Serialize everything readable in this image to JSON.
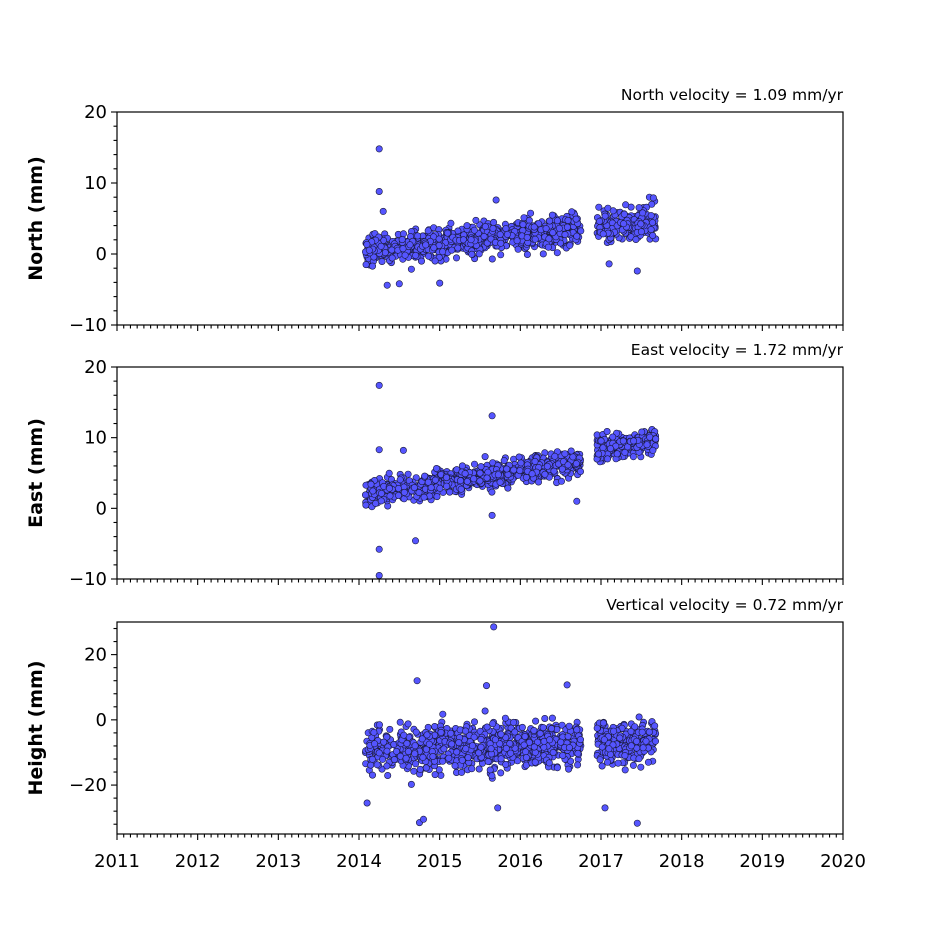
{
  "colors": {
    "marker_fill": "#5555ff",
    "marker_edge": "#1a1a3a",
    "axis": "#000000"
  },
  "x_tick_labels": [
    "2011",
    "2012",
    "2013",
    "2014",
    "2015",
    "2016",
    "2017",
    "2018",
    "2019",
    "2020"
  ],
  "chart_data": [
    {
      "type": "scatter",
      "title": "North velocity = 1.09 mm/yr",
      "ylabel": "North (mm)",
      "xlim": [
        2011,
        2020
      ],
      "ylim": [
        -10,
        20
      ],
      "yticks": [
        -10,
        0,
        10,
        20
      ],
      "ytick_labels": [
        "−10",
        "0",
        "10",
        "20"
      ],
      "grid": false,
      "series": [
        {
          "velocity_mm_per_yr": 1.09,
          "x_start": 2014.08,
          "x_end": 2017.68,
          "gap": [
            2016.75,
            2016.95
          ],
          "points": [
            [
              2014.25,
              14.8
            ],
            [
              2014.25,
              8.8
            ],
            [
              2014.3,
              6.0
            ],
            [
              2014.35,
              -4.4
            ],
            [
              2014.5,
              -4.2
            ],
            [
              2015.0,
              -4.1
            ],
            [
              2015.7,
              7.6
            ],
            [
              2017.1,
              -1.4
            ],
            [
              2017.45,
              -2.4
            ],
            [
              2017.6,
              8.0
            ],
            [
              2017.65,
              7.9
            ]
          ]
        }
      ]
    },
    {
      "type": "scatter",
      "title": "East velocity = 1.72 mm/yr",
      "ylabel": "East (mm)",
      "xlim": [
        2011,
        2020
      ],
      "ylim": [
        -10,
        20
      ],
      "yticks": [
        -10,
        0,
        10,
        20
      ],
      "ytick_labels": [
        "−10",
        "0",
        "10",
        "20"
      ],
      "grid": false,
      "series": [
        {
          "velocity_mm_per_yr": 1.72,
          "x_start": 2014.08,
          "x_end": 2017.68,
          "gap": [
            2016.75,
            2016.95
          ],
          "points": [
            [
              2014.25,
              17.4
            ],
            [
              2014.25,
              -9.5
            ],
            [
              2014.25,
              -5.8
            ],
            [
              2014.25,
              8.3
            ],
            [
              2014.55,
              8.2
            ],
            [
              2014.7,
              -4.6
            ],
            [
              2015.65,
              13.1
            ],
            [
              2015.65,
              -1.0
            ],
            [
              2016.7,
              1.0
            ]
          ]
        }
      ]
    },
    {
      "type": "scatter",
      "title": "Vertical velocity = 0.72 mm/yr",
      "ylabel": "Height (mm)",
      "xlim": [
        2011,
        2020
      ],
      "ylim": [
        -35,
        30
      ],
      "yticks": [
        -20,
        0,
        20
      ],
      "ytick_labels": [
        "−20",
        "0",
        "20"
      ],
      "grid": false,
      "series": [
        {
          "velocity_mm_per_yr": 0.72,
          "x_start": 2014.08,
          "x_end": 2017.68,
          "gap": [
            2016.75,
            2016.95
          ],
          "points": [
            [
              2015.67,
              28.5
            ],
            [
              2014.72,
              12.0
            ],
            [
              2016.58,
              10.7
            ],
            [
              2015.58,
              10.5
            ],
            [
              2014.75,
              -31.5
            ],
            [
              2014.8,
              -30.5
            ],
            [
              2017.45,
              -31.7
            ],
            [
              2017.05,
              -27.0
            ],
            [
              2015.72,
              -27.0
            ],
            [
              2014.1,
              -25.5
            ]
          ]
        }
      ]
    }
  ]
}
